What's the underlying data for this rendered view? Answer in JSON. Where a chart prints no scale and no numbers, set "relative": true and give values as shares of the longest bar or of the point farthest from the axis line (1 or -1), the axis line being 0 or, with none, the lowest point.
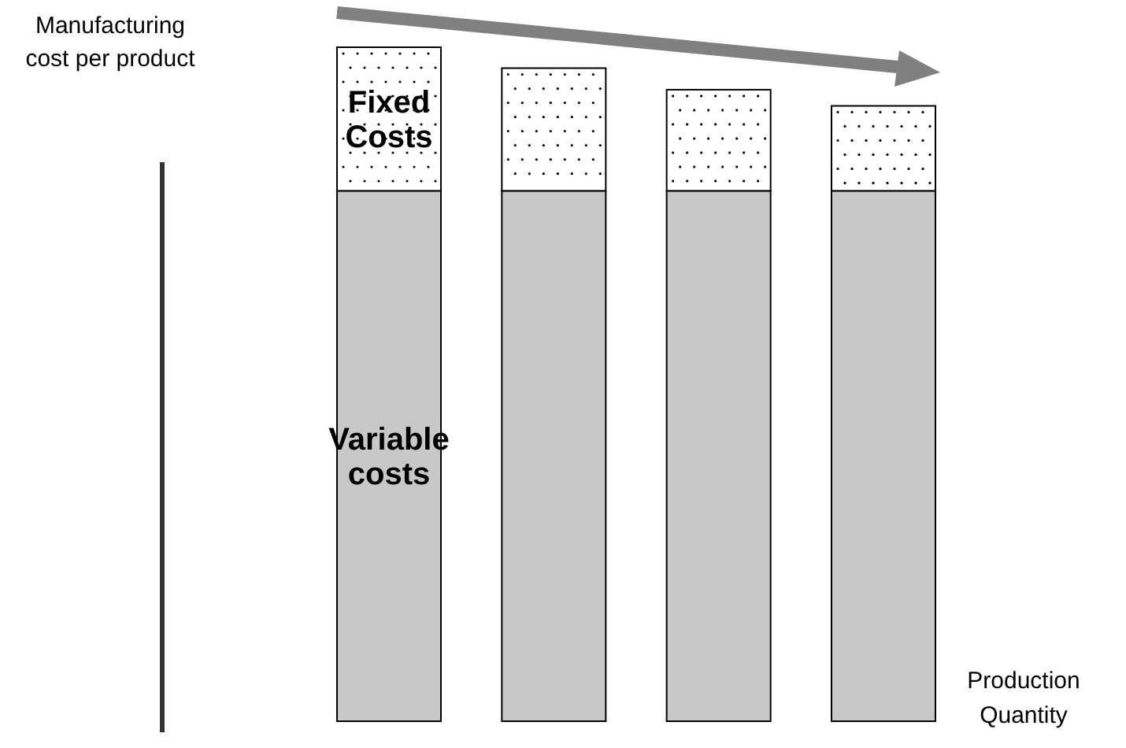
{
  "chart_data": {
    "type": "bar",
    "stacked": true,
    "relative": true,
    "legend": false,
    "xlabel": "Production Quantity",
    "ylabel": "Manufacturing cost per product",
    "categories": [
      null,
      null,
      null,
      null
    ],
    "series": [
      {
        "name": "Variable costs",
        "color": "#c8c8c8",
        "values": [
          0.787,
          0.787,
          0.787,
          0.787
        ]
      },
      {
        "name": "Fixed Costs",
        "color": "#ffffff",
        "values": [
          0.213,
          0.182,
          0.15,
          0.126
        ]
      }
    ]
  }
}
